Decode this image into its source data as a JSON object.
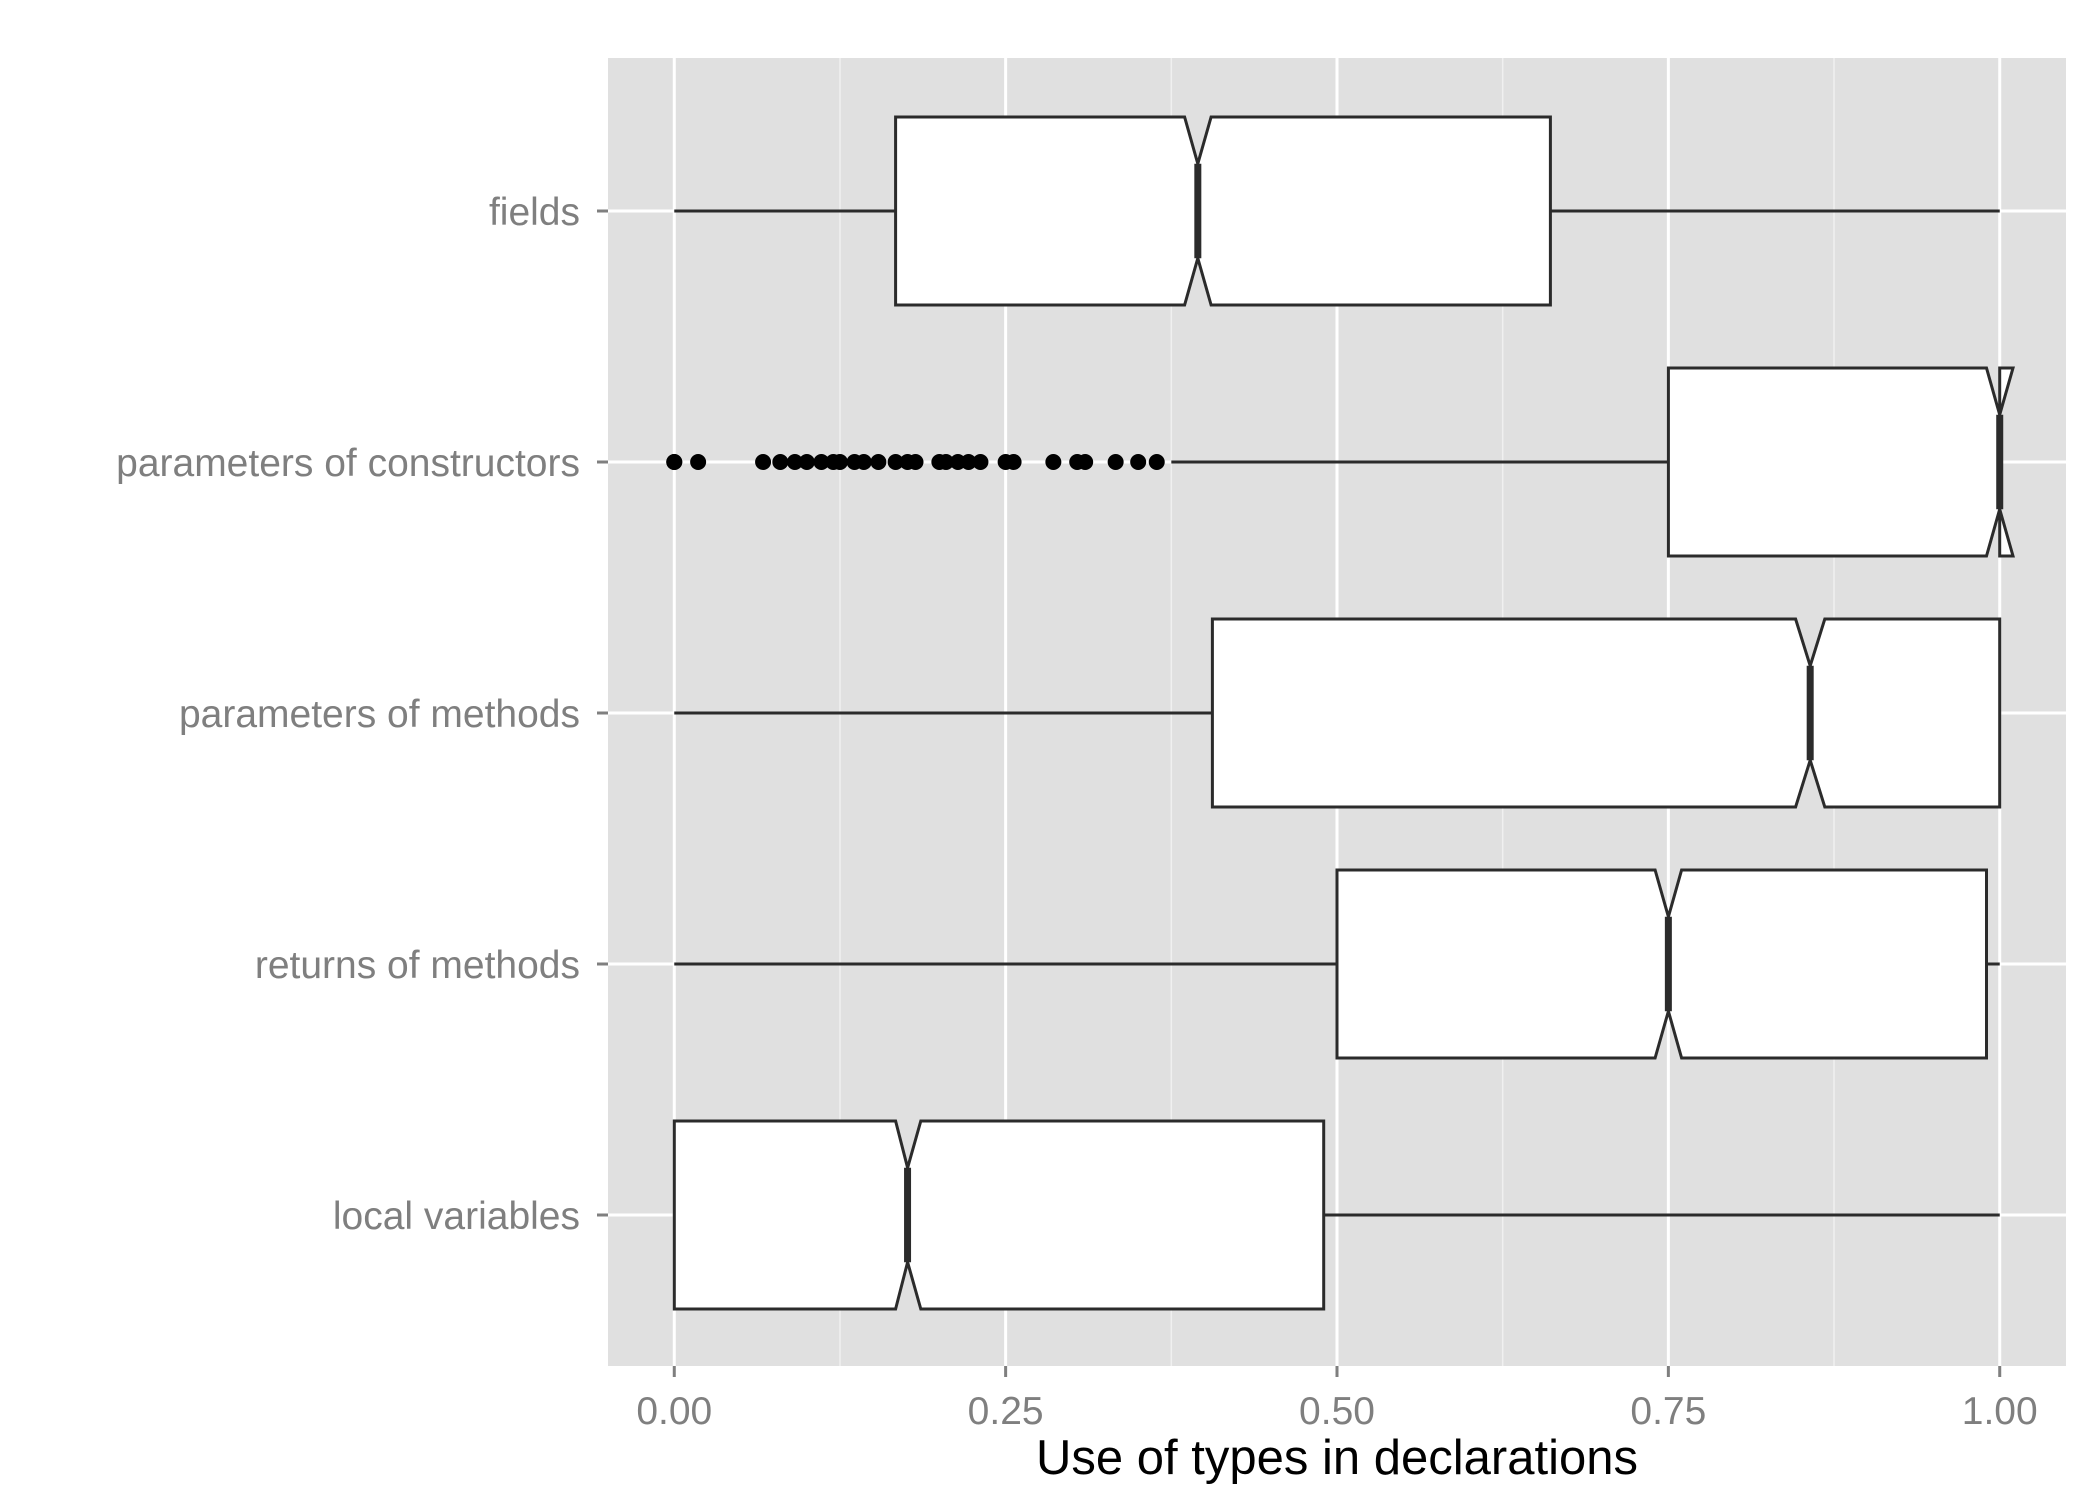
{
  "chart_data": {
    "type": "boxplot",
    "orientation": "horizontal",
    "notched": true,
    "xlabel": "Use of types in declarations",
    "ylabel": "",
    "xlim": [
      -0.05,
      1.05
    ],
    "x_ticks": [
      0.0,
      0.25,
      0.5,
      0.75,
      1.0
    ],
    "x_tick_labels": [
      "0.00",
      "0.25",
      "0.50",
      "0.75",
      "1.00"
    ],
    "grid": true,
    "categories": [
      "fields",
      "parameters of constructors",
      "parameters of methods",
      "returns of methods",
      "local variables"
    ],
    "boxes": [
      {
        "label": "fields",
        "whisker_low": 0.0,
        "q1": 0.167,
        "median": 0.395,
        "q3": 0.661,
        "whisker_high": 1.0,
        "notch": [
          0.385,
          0.405
        ],
        "outliers": []
      },
      {
        "label": "parameters of constructors",
        "whisker_low": 0.375,
        "q1": 0.75,
        "median": 1.0,
        "q3": 1.0,
        "whisker_high": 1.0,
        "notch": [
          0.99,
          1.01
        ],
        "outliers": [
          0.0,
          0.0,
          0.018,
          0.067,
          0.08,
          0.091,
          0.1,
          0.111,
          0.12,
          0.125,
          0.136,
          0.143,
          0.154,
          0.167,
          0.176,
          0.182,
          0.2,
          0.205,
          0.214,
          0.222,
          0.231,
          0.25,
          0.256,
          0.286,
          0.304,
          0.31,
          0.333,
          0.35,
          0.364
        ]
      },
      {
        "label": "parameters of methods",
        "whisker_low": 0.0,
        "q1": 0.406,
        "median": 0.857,
        "q3": 1.0,
        "whisker_high": 1.0,
        "notch": [
          0.846,
          0.868
        ],
        "outliers": []
      },
      {
        "label": "returns of methods",
        "whisker_low": 0.0,
        "q1": 0.5,
        "median": 0.75,
        "q3": 0.99,
        "whisker_high": 1.0,
        "notch": [
          0.74,
          0.76
        ],
        "outliers": []
      },
      {
        "label": "local variables",
        "whisker_low": 0.0,
        "q1": 0.0,
        "median": 0.176,
        "q3": 0.49,
        "whisker_high": 1.0,
        "notch": [
          0.167,
          0.186
        ],
        "outliers": []
      }
    ],
    "colors": {
      "panel_background": "#e0e0e0",
      "grid_major": "#ffffff",
      "grid_minor": "#f0f0f0",
      "box_fill": "#ffffff",
      "box_stroke": "#2b2b2b",
      "outlier": "#000000",
      "tick_label": "#7f7f7f"
    }
  }
}
